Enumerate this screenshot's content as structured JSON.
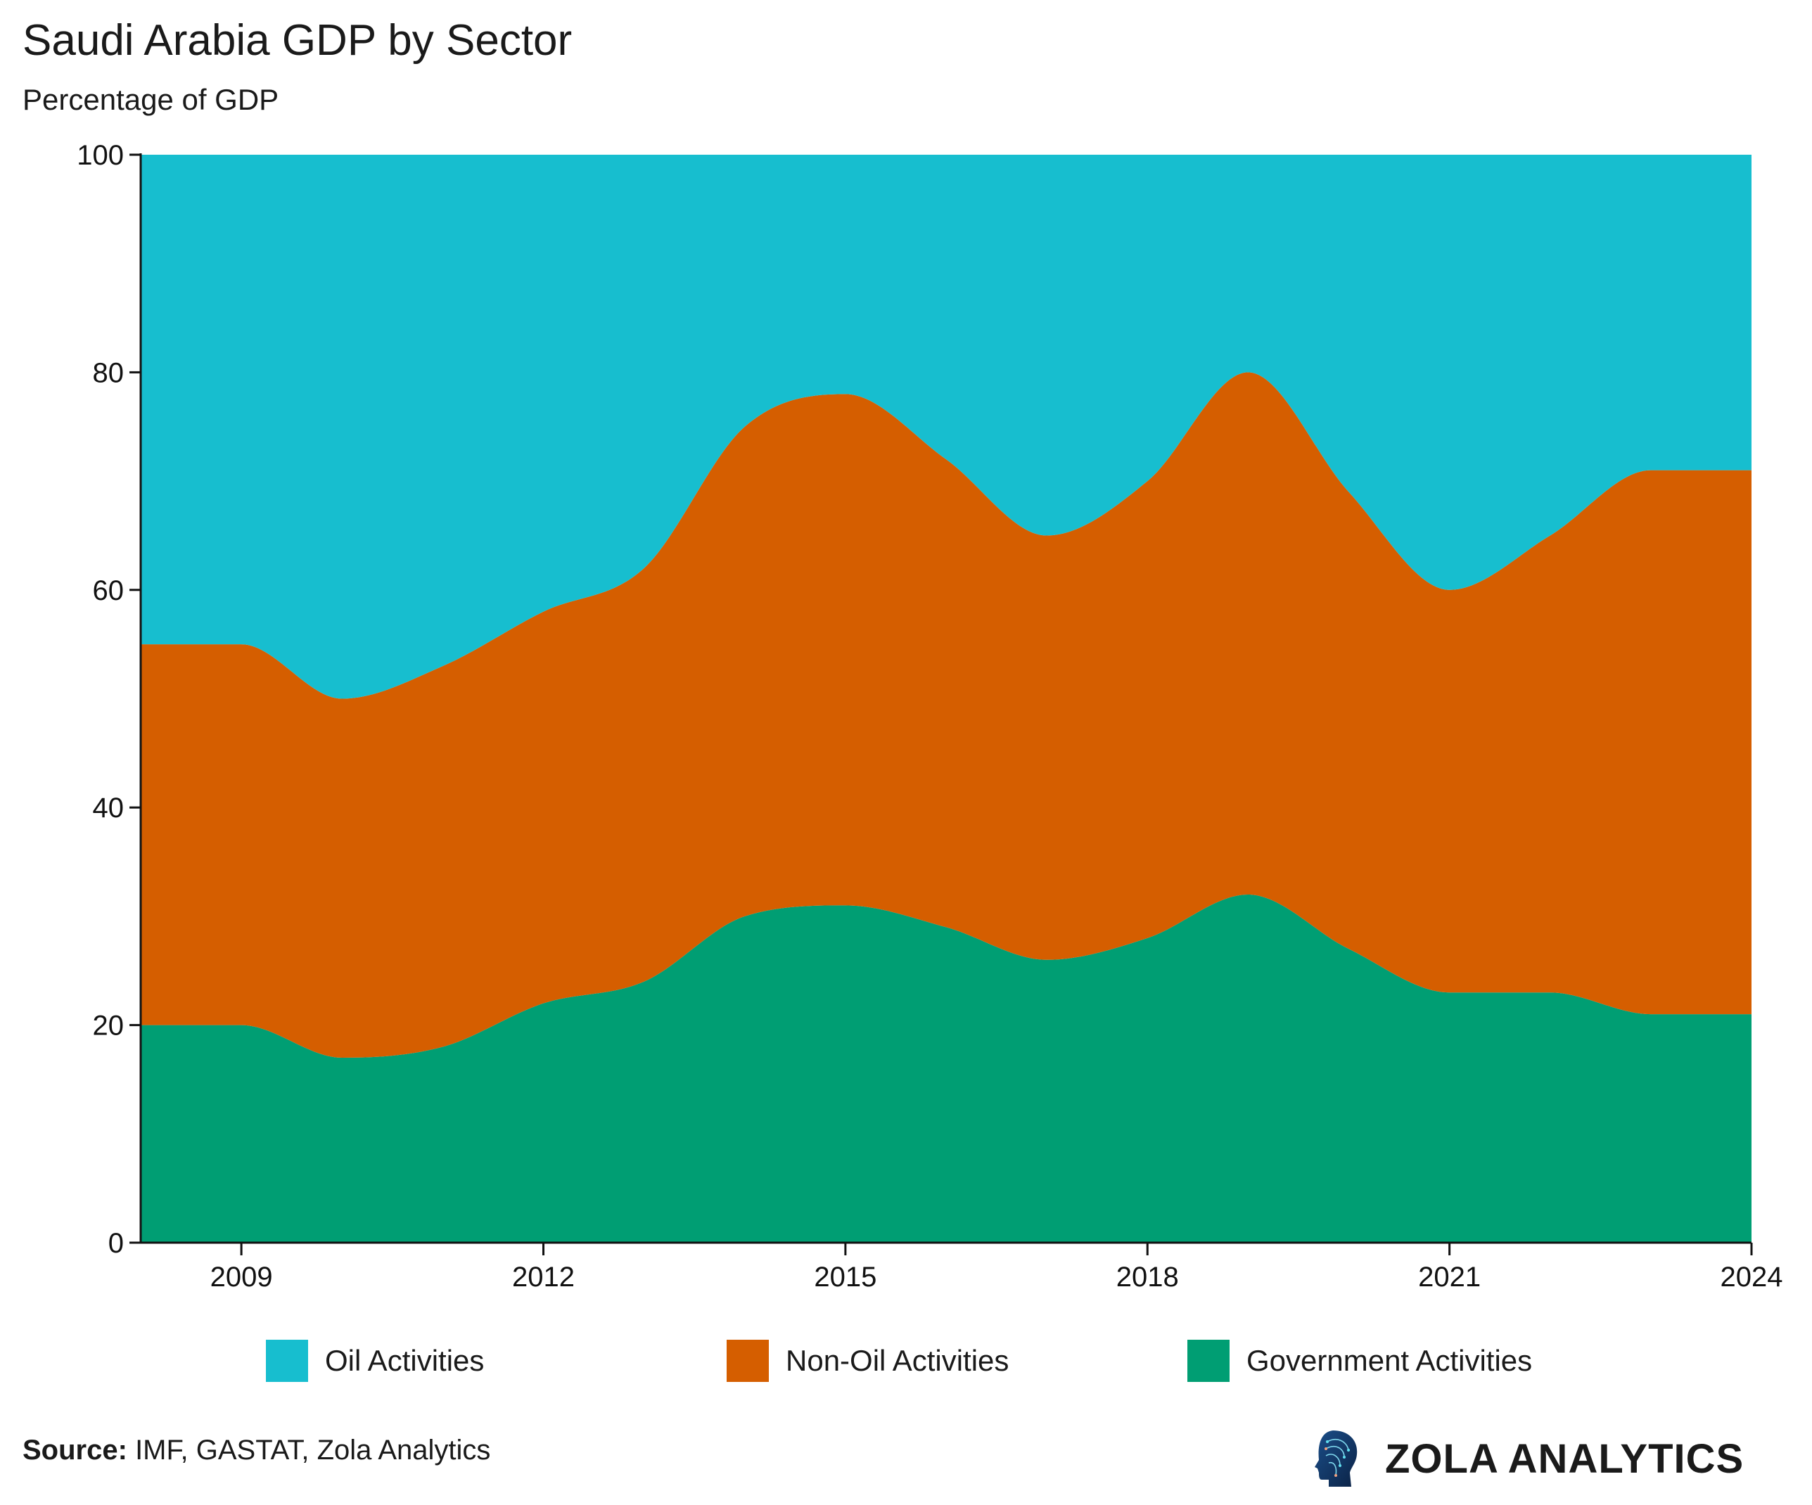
{
  "title": "Saudi Arabia GDP by Sector",
  "subtitle": "Percentage of GDP",
  "source_label": "Source:",
  "source_text": "IMF, GASTAT, Zola Analytics",
  "logo_text": "ZOLA ANALYTICS",
  "chart_data": {
    "type": "area",
    "stacked": true,
    "title": "Saudi Arabia GDP by Sector",
    "subtitle": "Percentage of GDP",
    "x": [
      2008,
      2009,
      2010,
      2011,
      2012,
      2013,
      2014,
      2015,
      2016,
      2017,
      2018,
      2019,
      2020,
      2021,
      2022,
      2023,
      2024
    ],
    "xlim": [
      2008,
      2024
    ],
    "ylim": [
      0,
      100
    ],
    "xticks": [
      "2009",
      "2012",
      "2015",
      "2018",
      "2021",
      "2024"
    ],
    "yticks": [
      "0",
      "20",
      "40",
      "60",
      "80",
      "100"
    ],
    "grid": false,
    "legend_position": "bottom",
    "series": [
      {
        "name": "Government Activities",
        "color": "#009E73",
        "values": [
          20,
          20,
          17,
          18,
          22,
          24,
          30,
          31,
          29,
          26,
          28,
          32,
          27,
          23,
          23,
          21,
          21
        ]
      },
      {
        "name": "Non-Oil Activities",
        "color": "#D55E00",
        "values": [
          35,
          35,
          33,
          35,
          36,
          38,
          45,
          47,
          43,
          39,
          42,
          48,
          42,
          37,
          42,
          50,
          50
        ]
      },
      {
        "name": "Oil Activities",
        "color": "#17BECF",
        "values": [
          45,
          45,
          50,
          47,
          42,
          38,
          25,
          22,
          28,
          35,
          30,
          20,
          31,
          40,
          35,
          29,
          29
        ]
      }
    ],
    "legend_order": [
      "Oil Activities",
      "Non-Oil Activities",
      "Government Activities"
    ]
  }
}
